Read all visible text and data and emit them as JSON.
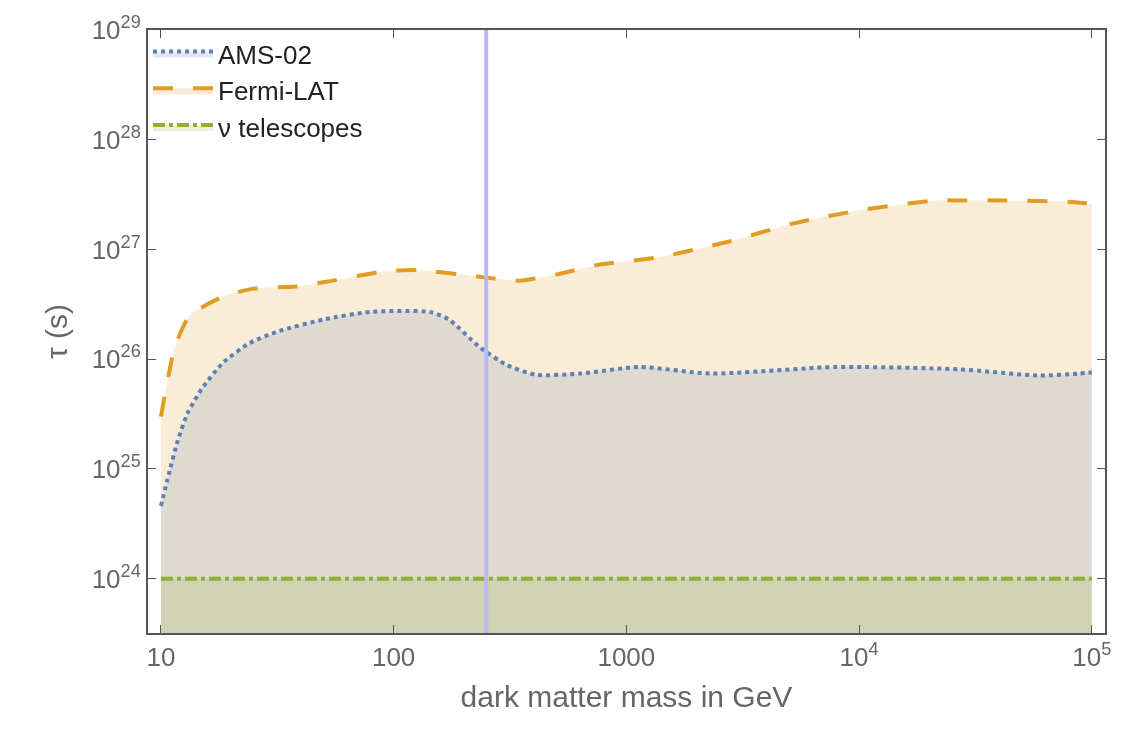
{
  "chart_data": {
    "type": "area",
    "xlabel": "dark matter mass in GeV",
    "ylabel": "τ (s)",
    "log": "xy",
    "legend": "top left",
    "xlim": [
      8.8,
      114000
    ],
    "xticks": [
      10,
      100,
      1000,
      {
        "value": 10000,
        "label": "10$^{4}$"
      },
      {
        "value": 100000,
        "label": "10$^{5}$"
      }
    ],
    "ylim": [
      3.2e+23,
      1e+29
    ],
    "yticks": [
      {
        "value": 1e+24,
        "label": "10$^{24}$"
      },
      {
        "value": 1e+25,
        "label": "10$^{25}$"
      },
      {
        "value": 1e+26,
        "label": "10$^{26}$"
      },
      {
        "value": 1e+27,
        "label": "10$^{27}$"
      },
      {
        "value": 1e+28,
        "label": "10$^{28}$"
      },
      {
        "value": 1e+29,
        "label": "10$^{29}$"
      }
    ],
    "ref_lines": [
      {
        "axis": "x",
        "value": 250,
        "color": "#b8b8f5"
      }
    ],
    "series": [
      {
        "name": "AMS-02",
        "color": "#5e81b5",
        "line_style": "dotted",
        "x": [
          10,
          10.8,
          11.8,
          13,
          15,
          18.5,
          24,
          32,
          50,
          79,
          143,
          173,
          233,
          305,
          410,
          630,
          1140,
          2300,
          7900,
          26800,
          59000,
          88000,
          100000
        ],
        "values": [
          4.6e+24,
          8.9e+24,
          1.8e+25,
          3.2e+25,
          5.4e+25,
          9.3e+25,
          1.4e+26,
          1.8e+26,
          2.3e+26,
          2.7e+26,
          2.7e+26,
          2.3e+26,
          1.3e+26,
          8.9e+25,
          7.2e+25,
          7.4e+25,
          8.5e+25,
          7.4e+25,
          8.5e+25,
          8.1e+25,
          7.1e+25,
          7.4e+25,
          7.6e+25
        ]
      },
      {
        "name": "Fermi-LAT",
        "color": "#e19c24",
        "line_style": "dashed",
        "x": [
          10,
          11.5,
          13.3,
          18.4,
          25,
          38,
          52,
          90,
          125,
          198,
          241,
          347,
          500,
          744,
          1380,
          2710,
          5300,
          10400,
          21300,
          26000,
          41700,
          85000,
          100000
        ],
        "values": [
          3e+25,
          1.3e+26,
          2.5e+26,
          3.7e+26,
          4.4e+26,
          4.6e+26,
          5.1e+26,
          6.3e+26,
          6.5e+26,
          5.9e+26,
          5.6e+26,
          5.2e+26,
          5.9e+26,
          7.2e+26,
          8.5e+26,
          1.17e+27,
          1.74e+27,
          2.3e+27,
          2.8e+27,
          2.8e+27,
          2.8e+27,
          2.7e+27,
          2.6e+27
        ]
      },
      {
        "name": "ν telescopes",
        "color": "#8fb032",
        "line_style": "dashdot",
        "x": [
          10,
          100000
        ],
        "values": [
          1e+24,
          1e+24
        ]
      }
    ]
  }
}
